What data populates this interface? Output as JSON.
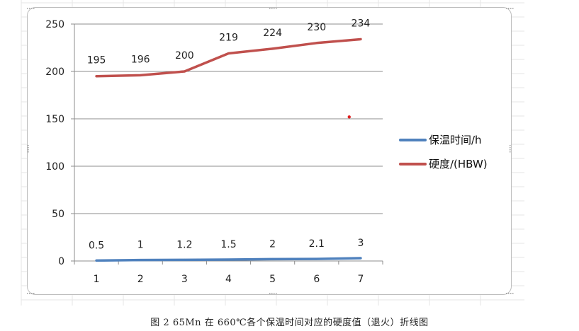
{
  "chart_data": {
    "type": "line",
    "categories": [
      "1",
      "2",
      "3",
      "4",
      "5",
      "6",
      "7"
    ],
    "series": [
      {
        "name": "保温时间/h",
        "color": "#4f81bd",
        "values": [
          0.5,
          1,
          1.2,
          1.5,
          2,
          2.1,
          3
        ],
        "labels": [
          "0.5",
          "1",
          "1.2",
          "1.5",
          "2",
          "2.1",
          "3"
        ]
      },
      {
        "name": "硬度/(HBW)",
        "color": "#c0504d",
        "values": [
          195,
          196,
          200,
          219,
          224,
          230,
          234
        ],
        "labels": [
          "195",
          "196",
          "200",
          "219",
          "224",
          "230",
          "234"
        ]
      }
    ],
    "yticks": [
      0,
      50,
      100,
      150,
      200,
      250
    ],
    "ylim": [
      0,
      250
    ],
    "gridlines": true,
    "legend_position": "right",
    "stray_point": {
      "x": 6.74,
      "y": 152,
      "color": "#e02020"
    }
  },
  "caption": "图 2   65Mn 在 660℃各个保温时间对应的硬度值（退火）折线图"
}
